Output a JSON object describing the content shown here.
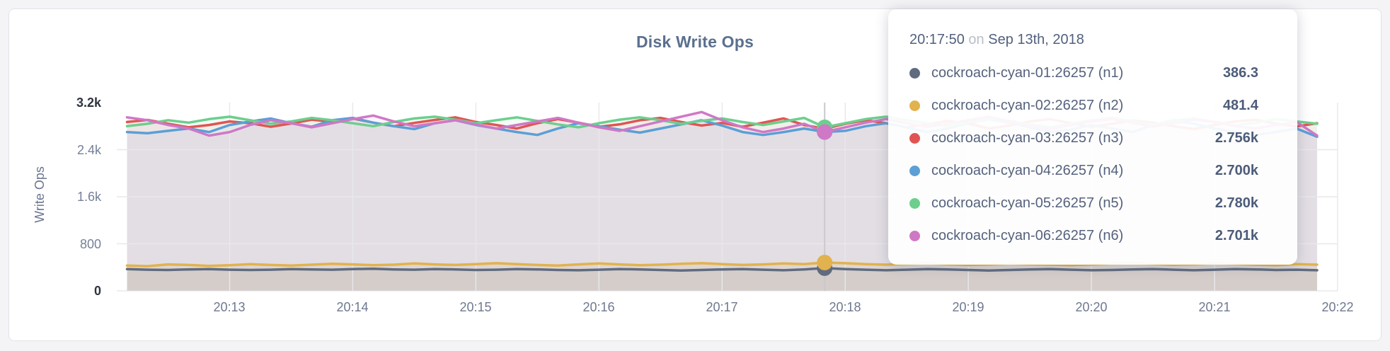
{
  "page": {
    "background": "#f4f4f6"
  },
  "card": {
    "title": "Disk Write Ops"
  },
  "tooltip": {
    "time": "20:17:50",
    "on_word": "on",
    "date": "Sep 13th, 2018"
  },
  "chart_data": {
    "type": "line",
    "title": "Disk Write Ops",
    "xlabel": "",
    "ylabel": "Write Ops",
    "ylim": [
      0,
      3200
    ],
    "grid": true,
    "legend_position": "tooltip-only",
    "y_ticks": [
      {
        "v": 0,
        "label": "0",
        "strong": true,
        "grid": false
      },
      {
        "v": 800,
        "label": "800",
        "strong": false,
        "grid": true
      },
      {
        "v": 1600,
        "label": "1.6k",
        "strong": false,
        "grid": true
      },
      {
        "v": 2400,
        "label": "2.4k",
        "strong": false,
        "grid": true
      },
      {
        "v": 3200,
        "label": "3.2k",
        "strong": true,
        "grid": false
      }
    ],
    "x_domain": {
      "start": "20:12:05",
      "end": "20:22:00"
    },
    "x_ticks": [
      "20:13",
      "20:14",
      "20:15",
      "20:16",
      "20:17",
      "20:18",
      "20:19",
      "20:20",
      "20:21",
      "20:22"
    ],
    "points": {
      "start": "20:12:10",
      "step_seconds": 10
    },
    "hover": {
      "index": 34,
      "time": "20:17:50",
      "date": "Sep 13th, 2018"
    },
    "series": [
      {
        "id": "n1",
        "name": "cockroach-cyan-01:26257 (n1)",
        "color": "#606b80",
        "fill_opacity": 0.1,
        "hover_value": 386.3,
        "value_label": "386.3",
        "values": [
          370,
          360,
          355,
          365,
          370,
          360,
          355,
          360,
          370,
          365,
          360,
          370,
          375,
          365,
          360,
          370,
          365,
          355,
          360,
          370,
          365,
          355,
          350,
          360,
          370,
          365,
          355,
          345,
          355,
          365,
          370,
          360,
          350,
          365,
          386.3,
          370,
          360,
          350,
          360,
          370,
          365,
          355,
          345,
          355,
          365,
          370,
          360,
          350,
          355,
          365,
          370,
          360,
          350,
          360,
          370,
          365,
          355,
          360,
          350
        ]
      },
      {
        "id": "n2",
        "name": "cockroach-cyan-02:26257 (n2)",
        "color": "#e1b24e",
        "fill_opacity": 0.13,
        "hover_value": 481.4,
        "value_label": "481.4",
        "values": [
          430,
          420,
          450,
          440,
          425,
          435,
          455,
          440,
          430,
          445,
          460,
          450,
          435,
          445,
          465,
          450,
          440,
          455,
          470,
          455,
          440,
          430,
          450,
          465,
          450,
          435,
          445,
          460,
          470,
          455,
          440,
          450,
          465,
          455,
          481.4,
          470,
          455,
          445,
          460,
          470,
          455,
          440,
          450,
          465,
          455,
          445,
          435,
          450,
          465,
          475,
          460,
          445,
          455,
          470,
          460,
          445,
          435,
          455,
          445
        ]
      },
      {
        "id": "n3",
        "name": "cockroach-cyan-03:26257 (n3)",
        "color": "#e05552",
        "fill_opacity": 0.08,
        "hover_value": 2756,
        "value_label": "2.756k",
        "values": [
          2870,
          2905,
          2840,
          2780,
          2820,
          2880,
          2850,
          2790,
          2845,
          2910,
          2875,
          2930,
          2860,
          2800,
          2855,
          2905,
          2950,
          2870,
          2820,
          2760,
          2850,
          2920,
          2860,
          2790,
          2830,
          2900,
          2940,
          2870,
          2810,
          2855,
          2790,
          2860,
          2930,
          2820,
          2756,
          2840,
          2900,
          2850,
          2780,
          2830,
          2890,
          2845,
          2760,
          2810,
          2880,
          2920,
          2850,
          2790,
          2840,
          2895,
          2860,
          2800,
          2750,
          2820,
          2880,
          2910,
          2840,
          2795,
          2850
        ]
      },
      {
        "id": "n4",
        "name": "cockroach-cyan-04:26257 (n4)",
        "color": "#5b9fd6",
        "fill_opacity": 0.08,
        "hover_value": 2700,
        "value_label": "2.700k",
        "values": [
          2700,
          2680,
          2720,
          2760,
          2700,
          2820,
          2880,
          2930,
          2850,
          2790,
          2900,
          2940,
          2860,
          2800,
          2750,
          2850,
          2900,
          2820,
          2760,
          2700,
          2650,
          2760,
          2850,
          2800,
          2740,
          2690,
          2760,
          2830,
          2900,
          2810,
          2700,
          2650,
          2700,
          2760,
          2700,
          2720,
          2800,
          2850,
          2780,
          2700,
          2760,
          2850,
          2920,
          2860,
          2780,
          2700,
          2740,
          2820,
          2760,
          2700,
          2820,
          2900,
          2840,
          2760,
          2700,
          2650,
          2700,
          2760,
          2620
        ]
      },
      {
        "id": "n5",
        "name": "cockroach-cyan-05:26257 (n5)",
        "color": "#6ccf8d",
        "fill_opacity": 0.08,
        "hover_value": 2780,
        "value_label": "2.780k",
        "values": [
          2800,
          2840,
          2900,
          2860,
          2920,
          2960,
          2900,
          2840,
          2880,
          2940,
          2900,
          2850,
          2800,
          2870,
          2930,
          2960,
          2910,
          2850,
          2900,
          2950,
          2890,
          2830,
          2780,
          2850,
          2910,
          2950,
          2900,
          2840,
          2890,
          2930,
          2870,
          2820,
          2880,
          2940,
          2780,
          2850,
          2920,
          2960,
          2900,
          2850,
          2800,
          2870,
          2930,
          2890,
          2830,
          2780,
          2840,
          2900,
          2940,
          2880,
          2830,
          2890,
          2930,
          2870,
          2810,
          2860,
          2920,
          2880,
          2840
        ]
      },
      {
        "id": "n6",
        "name": "cockroach-cyan-06:26257 (n6)",
        "color": "#cf78c6",
        "fill_opacity": 0.08,
        "hover_value": 2701,
        "value_label": "2.701k",
        "values": [
          2950,
          2900,
          2820,
          2760,
          2640,
          2700,
          2820,
          2900,
          2850,
          2780,
          2850,
          2920,
          2980,
          2880,
          2800,
          2850,
          2900,
          2830,
          2760,
          2820,
          2880,
          2940,
          2860,
          2780,
          2720,
          2800,
          2880,
          2960,
          3040,
          2900,
          2780,
          2700,
          2760,
          2840,
          2701,
          2780,
          2860,
          2920,
          2850,
          2790,
          2840,
          2900,
          2960,
          2880,
          2800,
          2750,
          2820,
          2880,
          2920,
          2860,
          2790,
          2850,
          2910,
          2870,
          2800,
          2760,
          2820,
          2870,
          2640
        ]
      }
    ],
    "colors": {
      "grid": "#e8e8ec",
      "hover_line": "#c9c9ce",
      "baseline": "#dfdfe2"
    }
  }
}
